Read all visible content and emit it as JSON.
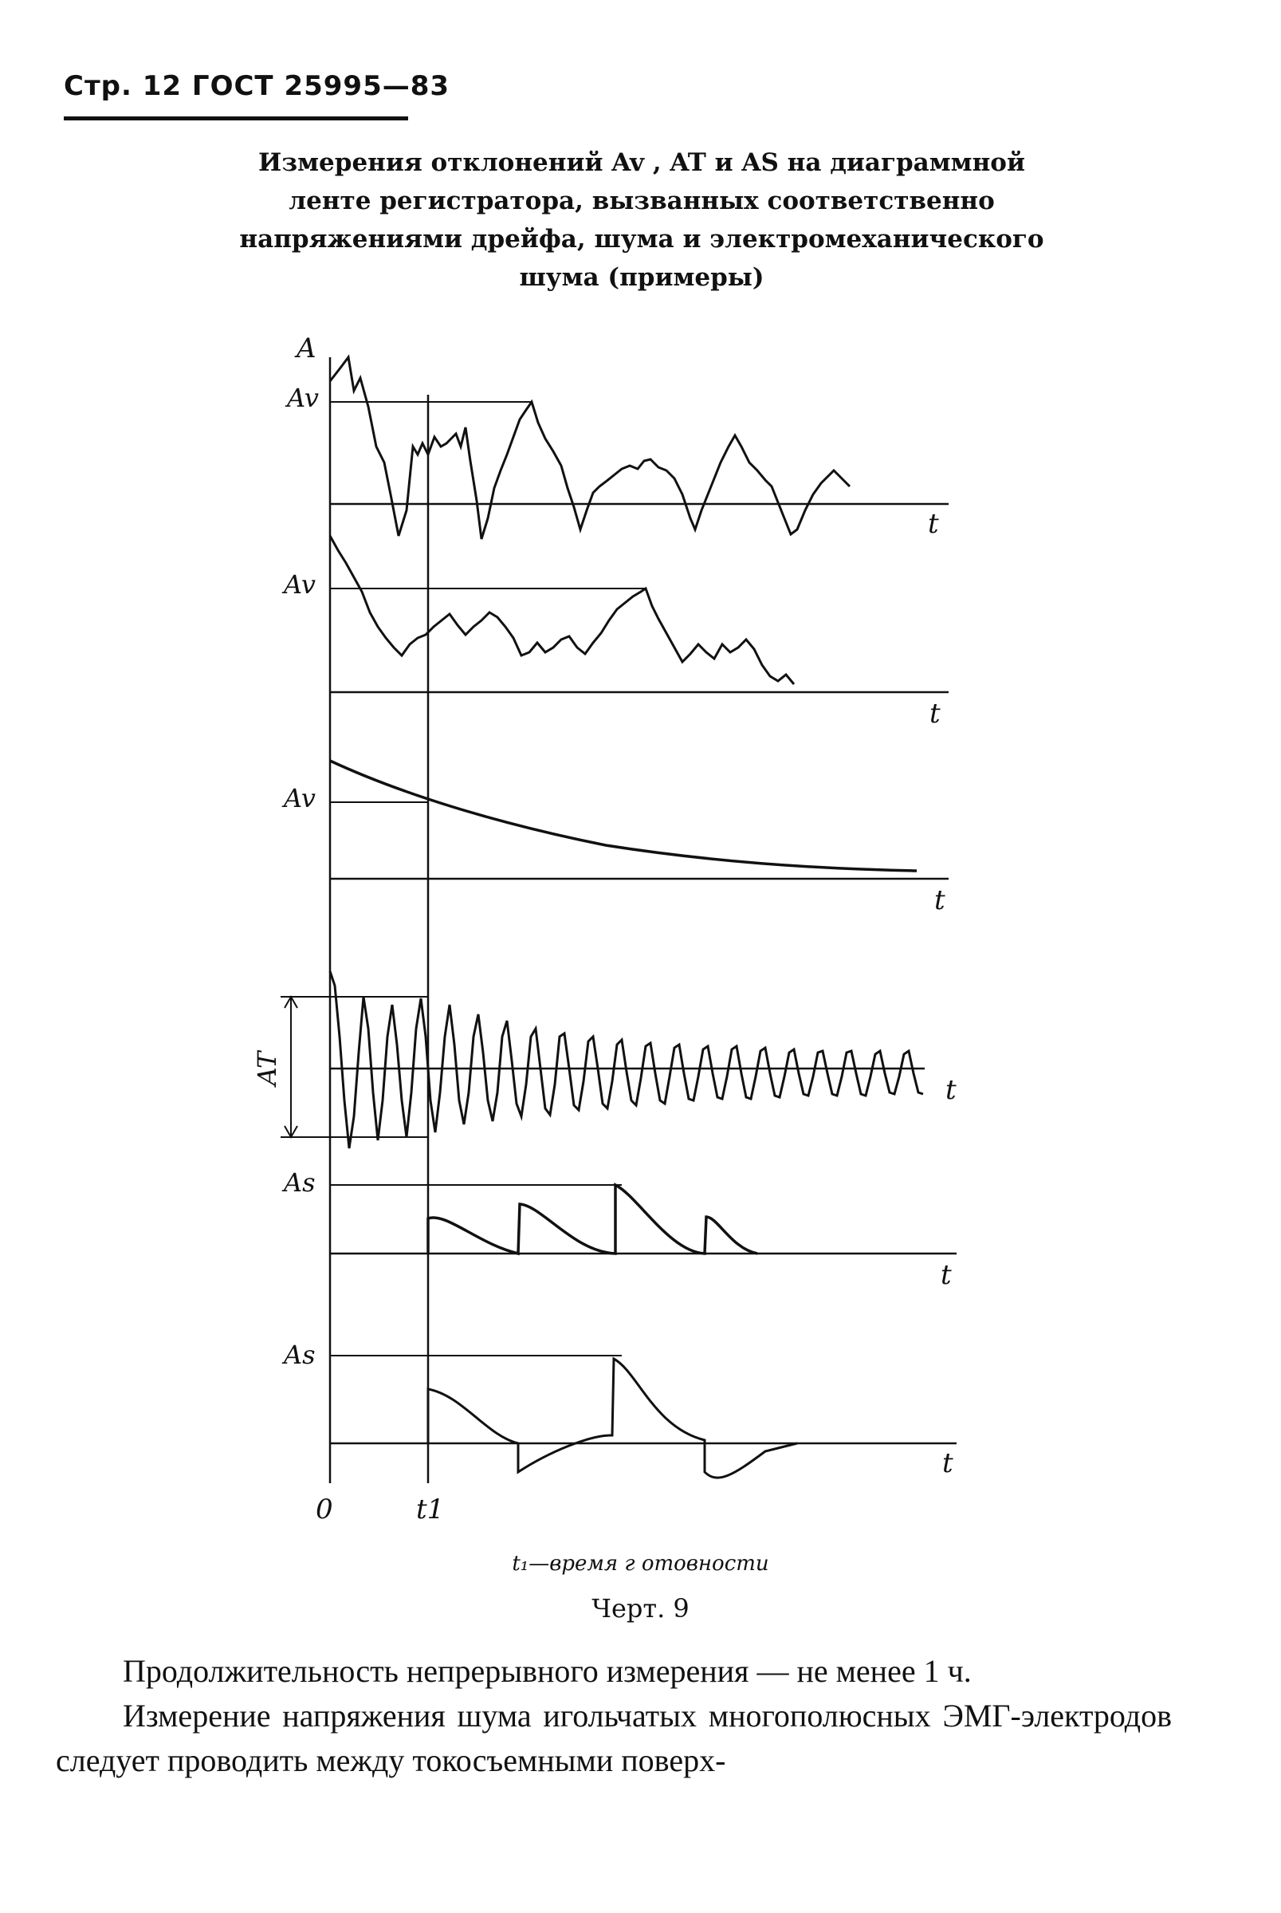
{
  "header": {
    "page_ref": "Стр. 12 ГОСТ 25995—83"
  },
  "title_lines": [
    "Измерения отклонений Av , AT и AS на диаграммной",
    "ленте регистратора, вызванных соответственно",
    "напряжениями дрейфа, шума и электромеханического",
    "шума (примеры)"
  ],
  "figure": {
    "y_axis_label": "A",
    "t_label": "t",
    "origin_label": "0",
    "t1_label": "t1",
    "panels": [
      {
        "label": "Av",
        "axis": "t"
      },
      {
        "label": "Av",
        "axis": "t"
      },
      {
        "label": "Av",
        "axis": "t"
      },
      {
        "label": "AT",
        "axis": "t"
      },
      {
        "label": "As",
        "axis": "t"
      },
      {
        "label": "As",
        "axis": "t"
      }
    ]
  },
  "caption": {
    "note": "t₁—время г отовности",
    "figure_number": "Черт. 9"
  },
  "body": {
    "paragraphs": [
      "Продолжительность непрерывного измерения — не менее 1 ч.",
      "Измерение напряжения шума игольчатых многополюсных ЭМГ-электродов следует проводить между токосъемными поверх-"
    ]
  }
}
